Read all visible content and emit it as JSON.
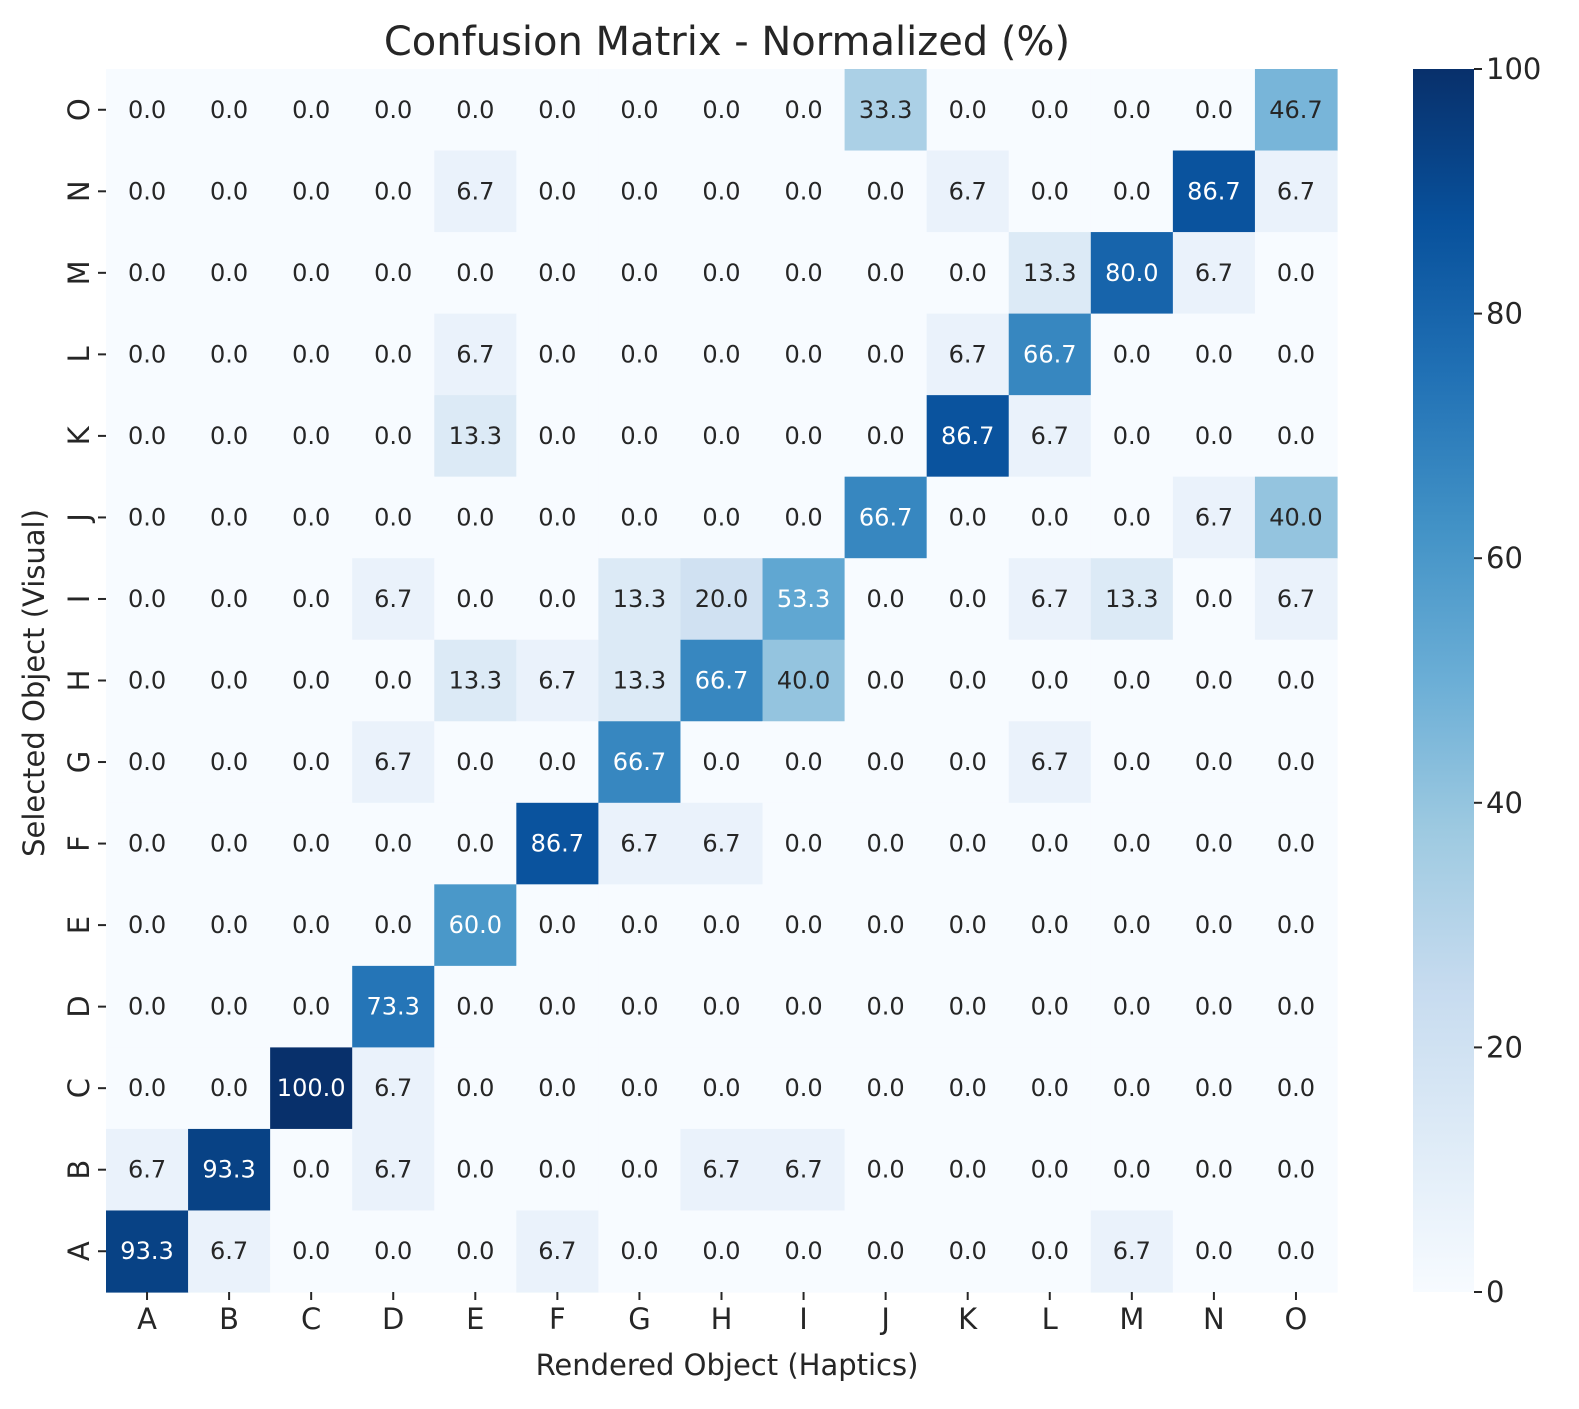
{
  "chart_data": {
    "type": "heatmap",
    "title": "Confusion Matrix - Normalized (%)",
    "xlabel": "Rendered Object (Haptics)",
    "ylabel": "Selected Object (Visual)",
    "x_categories": [
      "A",
      "B",
      "C",
      "D",
      "E",
      "F",
      "G",
      "H",
      "I",
      "J",
      "K",
      "L",
      "M",
      "N",
      "O"
    ],
    "y_categories_top_to_bottom": [
      "O",
      "N",
      "M",
      "L",
      "K",
      "J",
      "I",
      "H",
      "G",
      "F",
      "E",
      "D",
      "C",
      "B",
      "A"
    ],
    "values_top_to_bottom": [
      [
        "0.0",
        "0.0",
        "0.0",
        "0.0",
        "0.0",
        "0.0",
        "0.0",
        "0.0",
        "0.0",
        "33.3",
        "0.0",
        "0.0",
        "0.0",
        "0.0",
        "46.7"
      ],
      [
        "0.0",
        "0.0",
        "0.0",
        "0.0",
        "6.7",
        "0.0",
        "0.0",
        "0.0",
        "0.0",
        "0.0",
        "6.7",
        "0.0",
        "0.0",
        "86.7",
        "6.7"
      ],
      [
        "0.0",
        "0.0",
        "0.0",
        "0.0",
        "0.0",
        "0.0",
        "0.0",
        "0.0",
        "0.0",
        "0.0",
        "0.0",
        "13.3",
        "80.0",
        "6.7",
        "0.0"
      ],
      [
        "0.0",
        "0.0",
        "0.0",
        "0.0",
        "6.7",
        "0.0",
        "0.0",
        "0.0",
        "0.0",
        "0.0",
        "6.7",
        "66.7",
        "0.0",
        "0.0",
        "0.0"
      ],
      [
        "0.0",
        "0.0",
        "0.0",
        "0.0",
        "13.3",
        "0.0",
        "0.0",
        "0.0",
        "0.0",
        "0.0",
        "86.7",
        "6.7",
        "0.0",
        "0.0",
        "0.0"
      ],
      [
        "0.0",
        "0.0",
        "0.0",
        "0.0",
        "0.0",
        "0.0",
        "0.0",
        "0.0",
        "0.0",
        "66.7",
        "0.0",
        "0.0",
        "0.0",
        "6.7",
        "40.0"
      ],
      [
        "0.0",
        "0.0",
        "0.0",
        "6.7",
        "0.0",
        "0.0",
        "13.3",
        "20.0",
        "53.3",
        "0.0",
        "0.0",
        "6.7",
        "13.3",
        "0.0",
        "6.7"
      ],
      [
        "0.0",
        "0.0",
        "0.0",
        "0.0",
        "13.3",
        "6.7",
        "13.3",
        "66.7",
        "40.0",
        "0.0",
        "0.0",
        "0.0",
        "0.0",
        "0.0",
        "0.0"
      ],
      [
        "0.0",
        "0.0",
        "0.0",
        "6.7",
        "0.0",
        "0.0",
        "66.7",
        "0.0",
        "0.0",
        "0.0",
        "0.0",
        "6.7",
        "0.0",
        "0.0",
        "0.0"
      ],
      [
        "0.0",
        "0.0",
        "0.0",
        "0.0",
        "0.0",
        "86.7",
        "6.7",
        "6.7",
        "0.0",
        "0.0",
        "0.0",
        "0.0",
        "0.0",
        "0.0",
        "0.0"
      ],
      [
        "0.0",
        "0.0",
        "0.0",
        "0.0",
        "60.0",
        "0.0",
        "0.0",
        "0.0",
        "0.0",
        "0.0",
        "0.0",
        "0.0",
        "0.0",
        "0.0",
        "0.0"
      ],
      [
        "0.0",
        "0.0",
        "0.0",
        "73.3",
        "0.0",
        "0.0",
        "0.0",
        "0.0",
        "0.0",
        "0.0",
        "0.0",
        "0.0",
        "0.0",
        "0.0",
        "0.0"
      ],
      [
        "0.0",
        "0.0",
        "100.0",
        "6.7",
        "0.0",
        "0.0",
        "0.0",
        "0.0",
        "0.0",
        "0.0",
        "0.0",
        "0.0",
        "0.0",
        "0.0",
        "0.0"
      ],
      [
        "6.7",
        "93.3",
        "0.0",
        "6.7",
        "0.0",
        "0.0",
        "0.0",
        "6.7",
        "6.7",
        "0.0",
        "0.0",
        "0.0",
        "0.0",
        "0.0",
        "0.0"
      ],
      [
        "93.3",
        "6.7",
        "0.0",
        "0.0",
        "0.0",
        "6.7",
        "0.0",
        "0.0",
        "0.0",
        "0.0",
        "0.0",
        "0.0",
        "6.7",
        "0.0",
        "0.0"
      ]
    ],
    "colorbar": {
      "min": 0,
      "max": 100,
      "ticks": [
        "0",
        "20",
        "40",
        "60",
        "80",
        "100"
      ],
      "colormap": "Blues",
      "colors": [
        "#f7fbff",
        "#deebf7",
        "#c6dbef",
        "#9ecae1",
        "#6baed6",
        "#4292c6",
        "#2171b5",
        "#08519c",
        "#08306b"
      ]
    },
    "grid": false
  }
}
